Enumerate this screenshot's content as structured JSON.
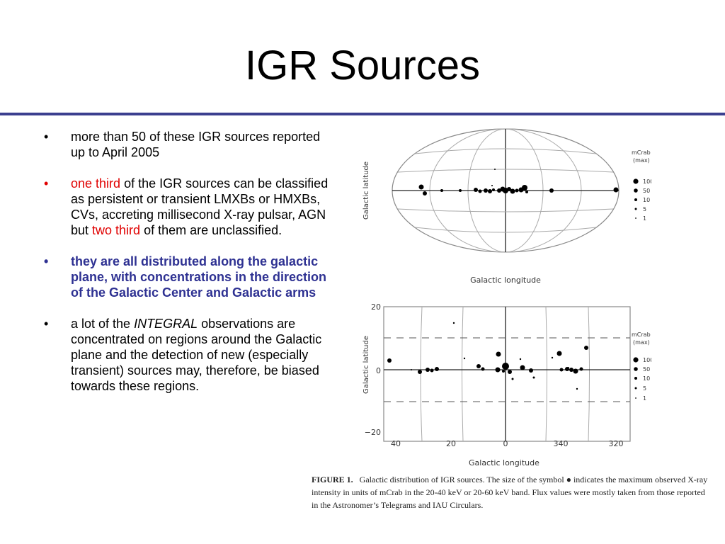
{
  "slide": {
    "title": "IGR Sources"
  },
  "bullets": [
    {
      "glyph": "•",
      "text": "more than 50 of these IGR sources reported up to April 2005"
    },
    {
      "glyph": "•",
      "red1": "one third",
      "text_a": " of the IGR sources can be classified as persistent or transient LMXBs or HMXBs, CVs, accreting millisecond X-ray pulsar, AGN but ",
      "red2": "two third",
      "text_b": " of them are unclassified."
    },
    {
      "glyph": "•",
      "text": "they are all distributed along the galactic plane, with concentrations in the direction of the Galactic Center and Galactic arms"
    },
    {
      "glyph": "•",
      "text_a": "a lot of the ",
      "italic": "INTEGRAL",
      "text_b": " observations are concentrated on regions around the Galactic plane and the detection of new (especially transient) sources may, therefore, be biased towards these regions."
    }
  ],
  "figure_top": {
    "ylabel": "Galactic latitude",
    "xlabel": "Galactic longitude"
  },
  "figure_bottom": {
    "ylabel": "Galactic latitude",
    "xlabel": "Galactic longitude",
    "yticks": [
      "20",
      "0",
      "−20"
    ],
    "xticks": [
      "40",
      "20",
      "0",
      "340",
      "320"
    ]
  },
  "legend": {
    "title": "mCrab",
    "subtitle": "(max)",
    "levels": [
      "100",
      "50",
      "10",
      "5",
      "1"
    ]
  },
  "caption": {
    "label": "FIGURE 1.",
    "text": "Galactic distribution of IGR sources. The size of the symbol ● indicates the maximum observed X-ray intensity in units of mCrab in the 20-40 keV or 20-60 keV band. Flux values were mostly taken from those reported in the Astronomer’s Telegrams and IAU Circulars."
  },
  "colors": {
    "rule": "#3b3f8f",
    "highlight_red": "#e00000",
    "highlight_blue": "#2e3192"
  }
}
